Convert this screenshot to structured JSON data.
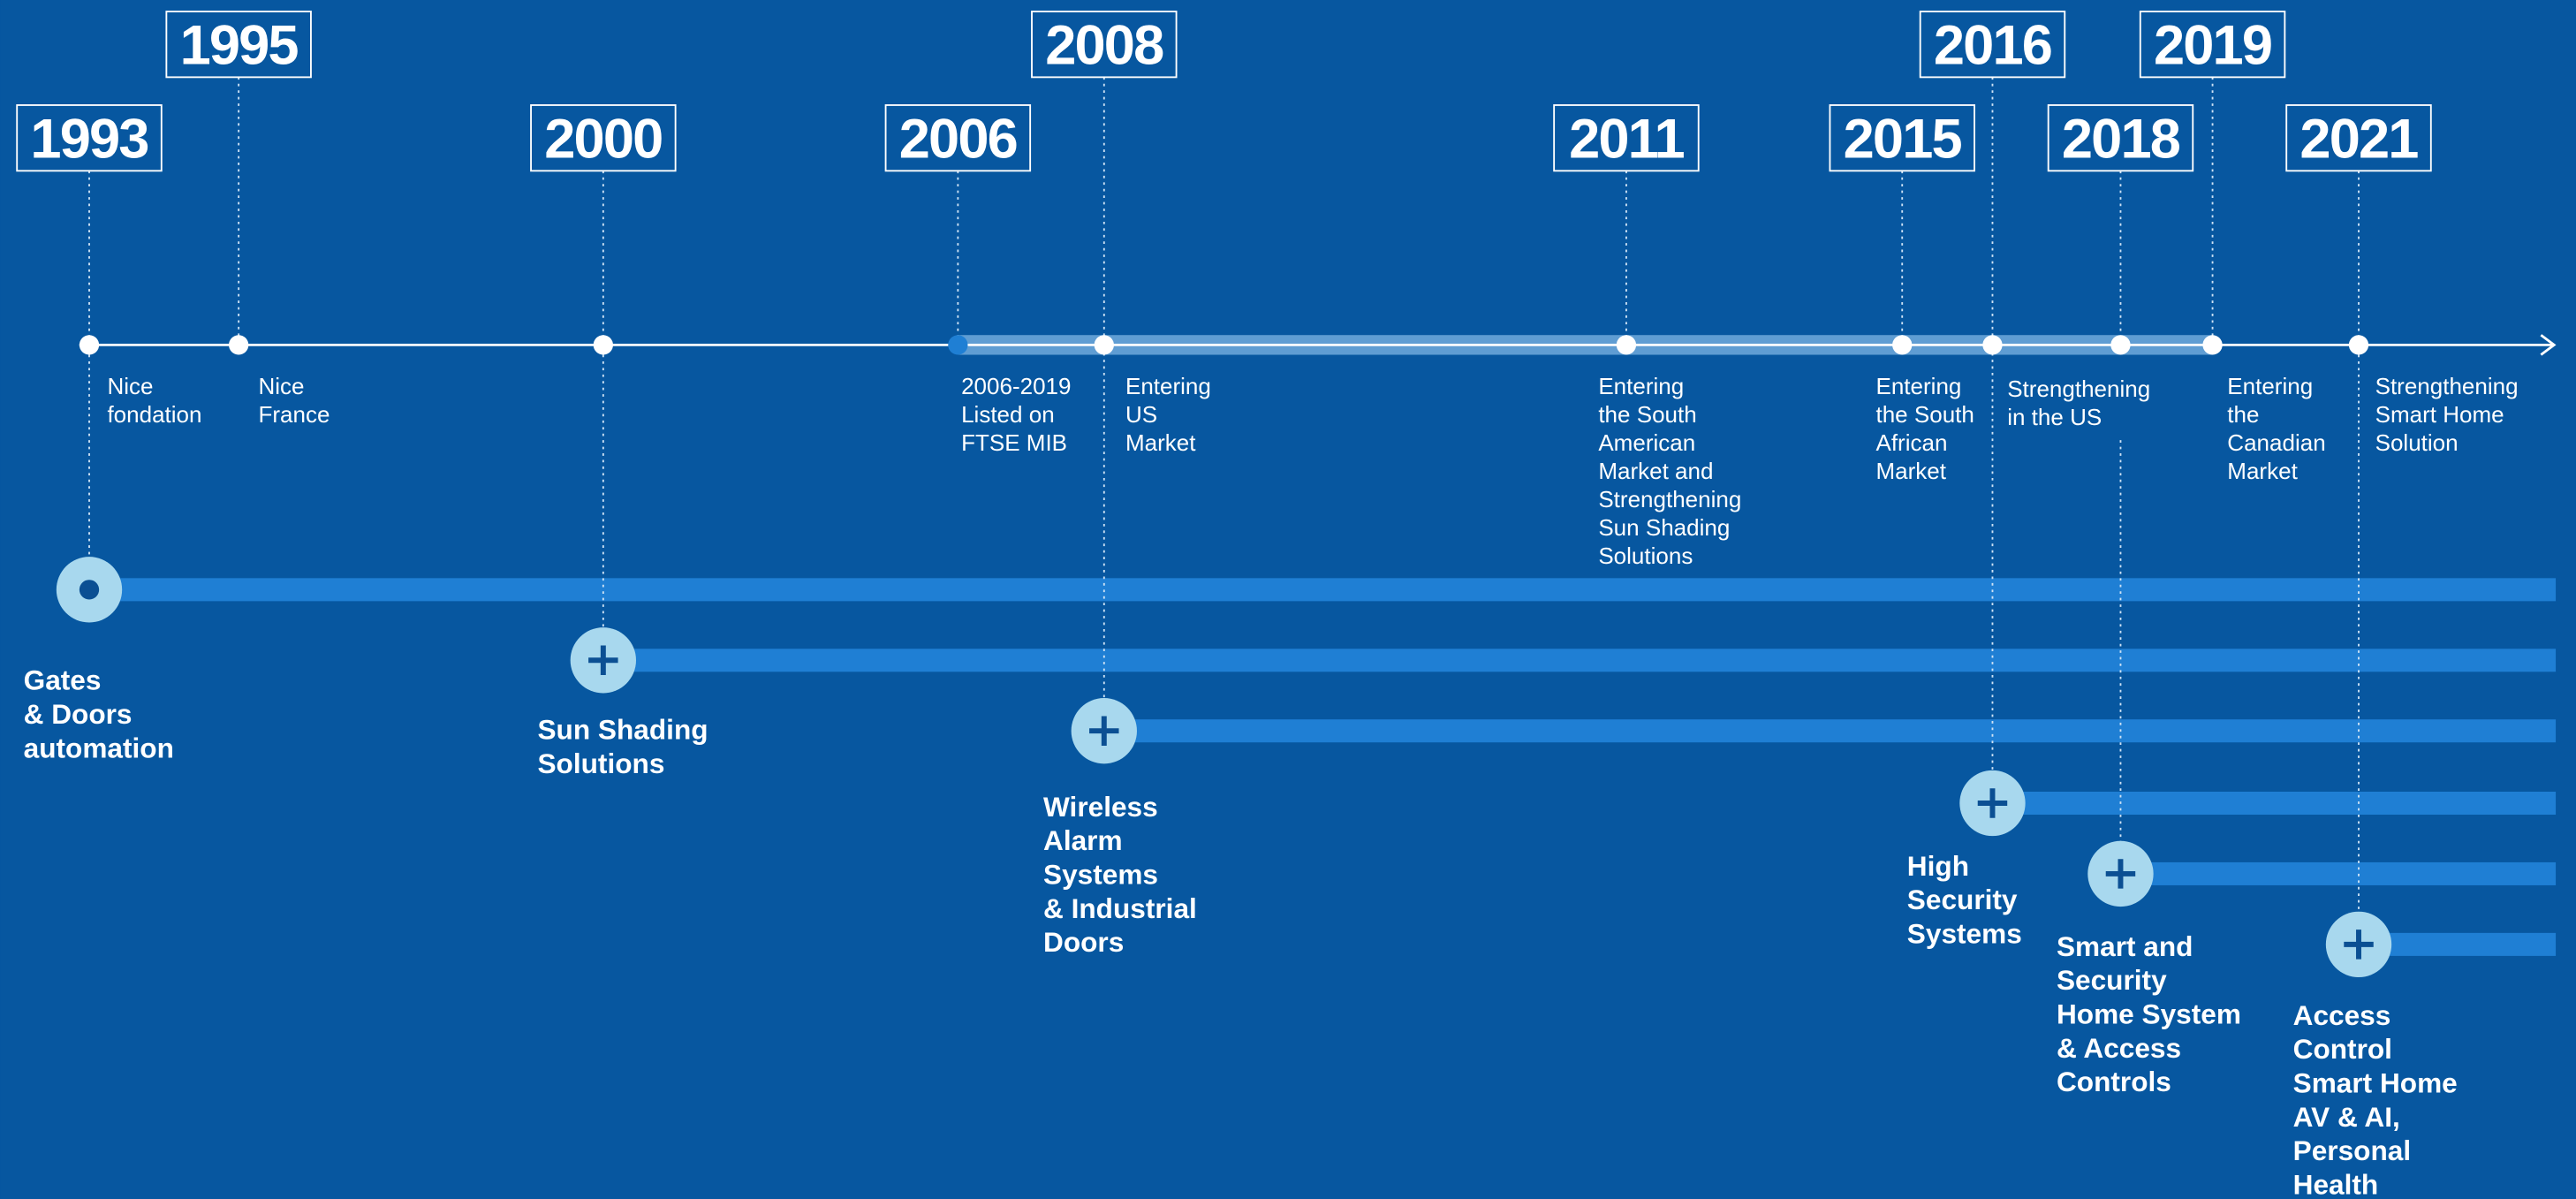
{
  "timeline": {
    "milestones": [
      {
        "year": "1993",
        "event": [
          "Nice",
          "fondation"
        ]
      },
      {
        "year": "1995",
        "event": [
          "Nice",
          "France"
        ]
      },
      {
        "year": "2000",
        "event": []
      },
      {
        "year": "2006",
        "event": [
          "2006-2019",
          "Listed on",
          "FTSE MIB"
        ]
      },
      {
        "year": "2008",
        "event": [
          "Entering",
          "US",
          "Market"
        ]
      },
      {
        "year": "2011",
        "event": [
          "Entering",
          "the South",
          "American",
          "Market and",
          "Strengthening",
          "Sun Shading",
          "Solutions"
        ]
      },
      {
        "year": "2015",
        "event": [
          "Entering",
          "the South",
          "African",
          "Market"
        ]
      },
      {
        "year": "2016",
        "event": [
          "Strengthening",
          "in the US"
        ]
      },
      {
        "year": "2018",
        "event": []
      },
      {
        "year": "2019",
        "event": [
          "Entering",
          "the",
          "Canadian",
          "Market"
        ]
      },
      {
        "year": "2021",
        "event": [
          "Strengthening",
          "Smart Home",
          "Solution"
        ]
      }
    ],
    "business_lines": [
      {
        "name": [
          "Gates",
          "& Doors",
          "automation"
        ]
      },
      {
        "name": [
          "Sun Shading",
          "Solutions"
        ]
      },
      {
        "name": [
          "Wireless",
          "Alarm",
          "Systems",
          "& Industrial",
          "Doors"
        ]
      },
      {
        "name": [
          "High",
          "Security",
          "Systems"
        ]
      },
      {
        "name": [
          "Smart and",
          "Security",
          "Home System",
          "& Access",
          "Controls"
        ]
      },
      {
        "name": [
          "Access",
          "Control",
          "Smart Home",
          "AV & AI,",
          "Personal",
          "Health"
        ]
      }
    ]
  }
}
